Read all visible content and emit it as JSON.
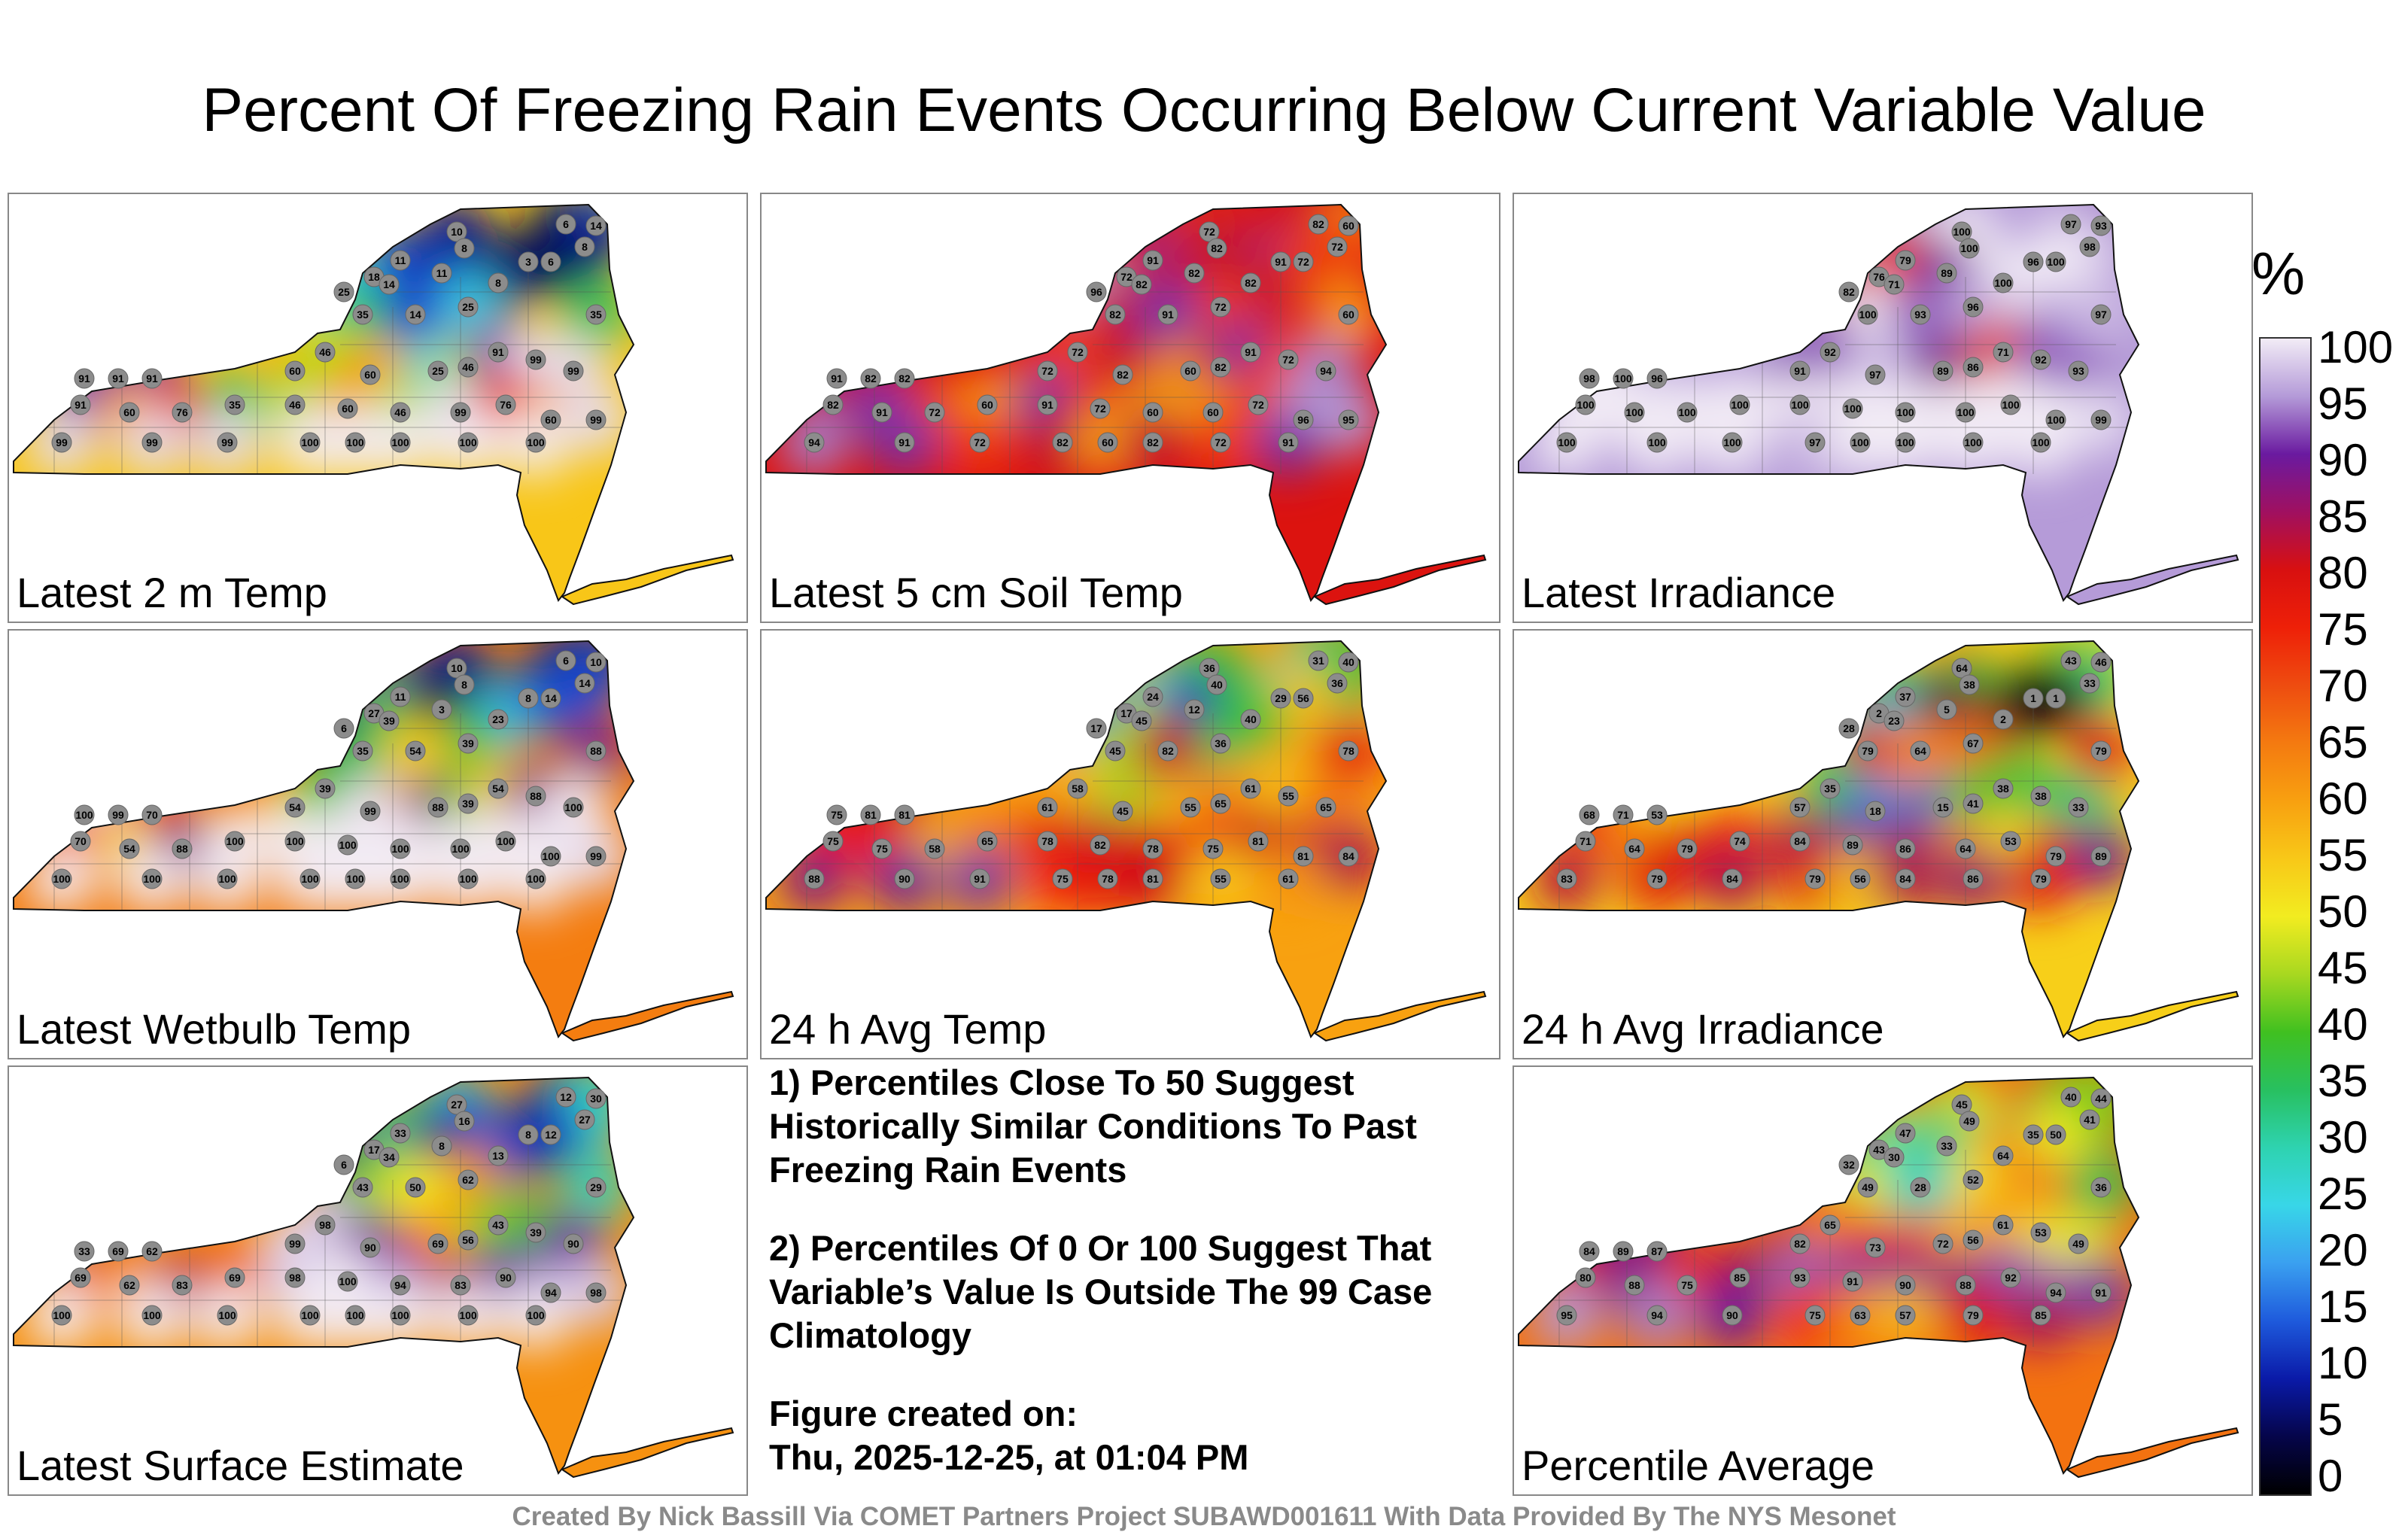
{
  "title": "Percent Of Freezing Rain Events Occurring Below Current Variable Value",
  "panels": [
    {
      "label": "Latest 2 m Temp",
      "palette": "temp2m",
      "values": [
        10,
        8,
        6,
        14,
        8,
        11,
        18,
        14,
        11,
        25,
        3,
        6,
        8,
        25,
        35,
        14,
        35,
        91,
        91,
        91,
        60,
        46,
        60,
        25,
        46,
        91,
        99,
        99,
        91,
        60,
        76,
        35,
        46,
        60,
        46,
        99,
        76,
        60,
        99,
        99,
        99,
        99,
        100,
        100,
        100,
        100,
        100
      ]
    },
    {
      "label": "Latest 5 cm Soil Temp",
      "palette": "soil",
      "values": [
        72,
        82,
        82,
        60,
        72,
        91,
        72,
        82,
        82,
        96,
        91,
        72,
        82,
        72,
        82,
        91,
        60,
        91,
        82,
        82,
        72,
        72,
        82,
        60,
        82,
        91,
        72,
        94,
        82,
        91,
        72,
        60,
        91,
        72,
        60,
        60,
        72,
        96,
        95,
        94,
        91,
        72,
        82,
        60,
        82,
        72,
        91
      ]
    },
    {
      "label": "Latest Irradiance",
      "palette": "irr",
      "values": [
        100,
        100,
        97,
        93,
        98,
        79,
        76,
        71,
        89,
        82,
        96,
        100,
        100,
        96,
        100,
        93,
        97,
        98,
        100,
        96,
        91,
        92,
        97,
        89,
        86,
        71,
        92,
        93,
        100,
        100,
        100,
        100,
        100,
        100,
        100,
        100,
        100,
        100,
        99,
        100,
        100,
        100,
        97,
        100,
        100,
        100,
        100
      ]
    },
    {
      "label": "Latest Wetbulb Temp",
      "palette": "temp2m",
      "values": [
        10,
        8,
        6,
        10,
        14,
        11,
        27,
        39,
        3,
        6,
        8,
        14,
        23,
        39,
        35,
        54,
        88,
        100,
        99,
        70,
        54,
        39,
        99,
        88,
        39,
        54,
        88,
        100,
        70,
        54,
        88,
        100,
        100,
        100,
        100,
        100,
        100,
        100,
        99,
        100,
        100,
        100,
        100,
        100,
        100,
        100,
        100
      ]
    },
    {
      "label": "24 h Avg Temp",
      "palette": "avgtemp",
      "values": [
        36,
        40,
        31,
        40,
        36,
        24,
        17,
        45,
        12,
        17,
        29,
        56,
        40,
        36,
        45,
        82,
        78,
        75,
        81,
        81,
        61,
        58,
        45,
        55,
        65,
        61,
        55,
        65,
        75,
        75,
        58,
        65,
        78,
        82,
        78,
        75,
        81,
        81,
        84,
        88,
        90,
        91,
        75,
        78,
        81,
        55,
        61
      ]
    },
    {
      "label": "24 h Avg Irradiance",
      "palette": "avgirr",
      "values": [
        64,
        38,
        43,
        46,
        33,
        37,
        2,
        23,
        5,
        28,
        1,
        1,
        2,
        67,
        79,
        64,
        79,
        68,
        71,
        53,
        57,
        35,
        18,
        15,
        41,
        38,
        38,
        33,
        71,
        64,
        79,
        74,
        84,
        89,
        86,
        64,
        53,
        79,
        89,
        83,
        79,
        84,
        79,
        56,
        84,
        86,
        79
      ]
    },
    {
      "label": "Latest Surface Estimate",
      "palette": "temp2m",
      "values": [
        27,
        16,
        12,
        30,
        27,
        33,
        17,
        34,
        8,
        6,
        8,
        12,
        13,
        62,
        43,
        50,
        29,
        33,
        69,
        62,
        99,
        98,
        90,
        69,
        56,
        43,
        39,
        90,
        69,
        62,
        83,
        69,
        98,
        100,
        94,
        83,
        90,
        94,
        98,
        100,
        100,
        100,
        100,
        100,
        100,
        100,
        100
      ]
    },
    {
      "label": "Percentile Average",
      "palette": "avg",
      "values": [
        45,
        49,
        40,
        44,
        41,
        47,
        43,
        30,
        33,
        32,
        35,
        50,
        64,
        52,
        49,
        28,
        36,
        84,
        89,
        87,
        82,
        65,
        73,
        72,
        56,
        61,
        53,
        49,
        80,
        88,
        75,
        85,
        93,
        91,
        90,
        88,
        92,
        94,
        91,
        95,
        94,
        90,
        75,
        63,
        57,
        79,
        85
      ]
    }
  ],
  "notes": {
    "n1": "1) Percentiles Close To 50 Suggest Historically Similar Conditions To Past Freezing Rain Events",
    "n2": "2) Percentiles Of 0 Or 100 Suggest That Variable’s Value Is Outside The 99 Case Climatology",
    "fig_label": "Figure created on:",
    "fig_date": "Thu, 2025-12-25, at 01:04 PM"
  },
  "colorbar": {
    "unit": "%",
    "ticks": [
      "100",
      "95",
      "90",
      "85",
      "80",
      "75",
      "70",
      "65",
      "60",
      "55",
      "50",
      "45",
      "40",
      "35",
      "30",
      "25",
      "20",
      "15",
      "10",
      "5",
      "0"
    ]
  },
  "footer": "Created By Nick Bassill Via COMET Partners Project SUBAWD001611 With Data Provided By The NYS Mesonet"
}
